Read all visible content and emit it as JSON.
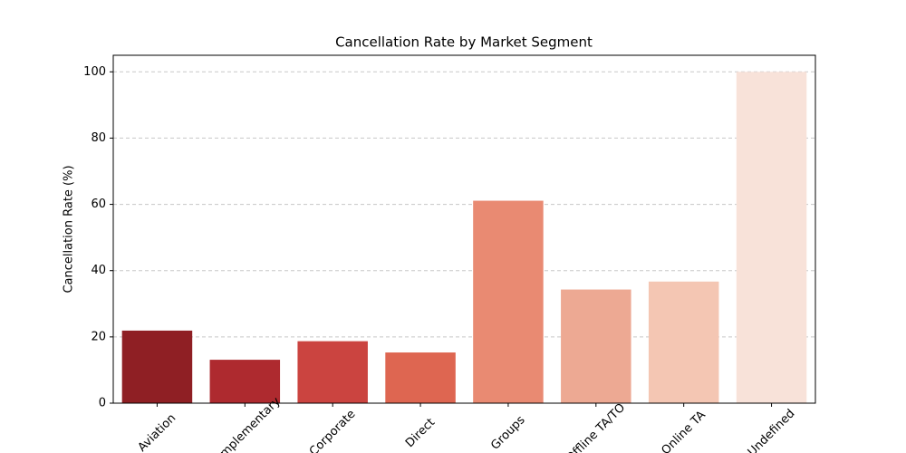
{
  "chart_data": {
    "type": "bar",
    "title": "Cancellation Rate by Market Segment",
    "y_label": "Cancellation Rate (%)",
    "categories": [
      "Aviation",
      "Complementary",
      "Corporate",
      "Direct",
      "Groups",
      "Offline TA/TO",
      "Online TA",
      "Undefined"
    ],
    "values": [
      21.9,
      13.1,
      18.7,
      15.3,
      61.1,
      34.3,
      36.7,
      100
    ],
    "colors": [
      "#8f1f24",
      "#ae2a2f",
      "#cb4440",
      "#de6651",
      "#e98a72",
      "#eda993",
      "#f4c6b3",
      "#f8e2d9"
    ],
    "ylim": [
      0,
      105
    ],
    "yticks": [
      0,
      20,
      40,
      60,
      80,
      100
    ],
    "grid": true
  }
}
